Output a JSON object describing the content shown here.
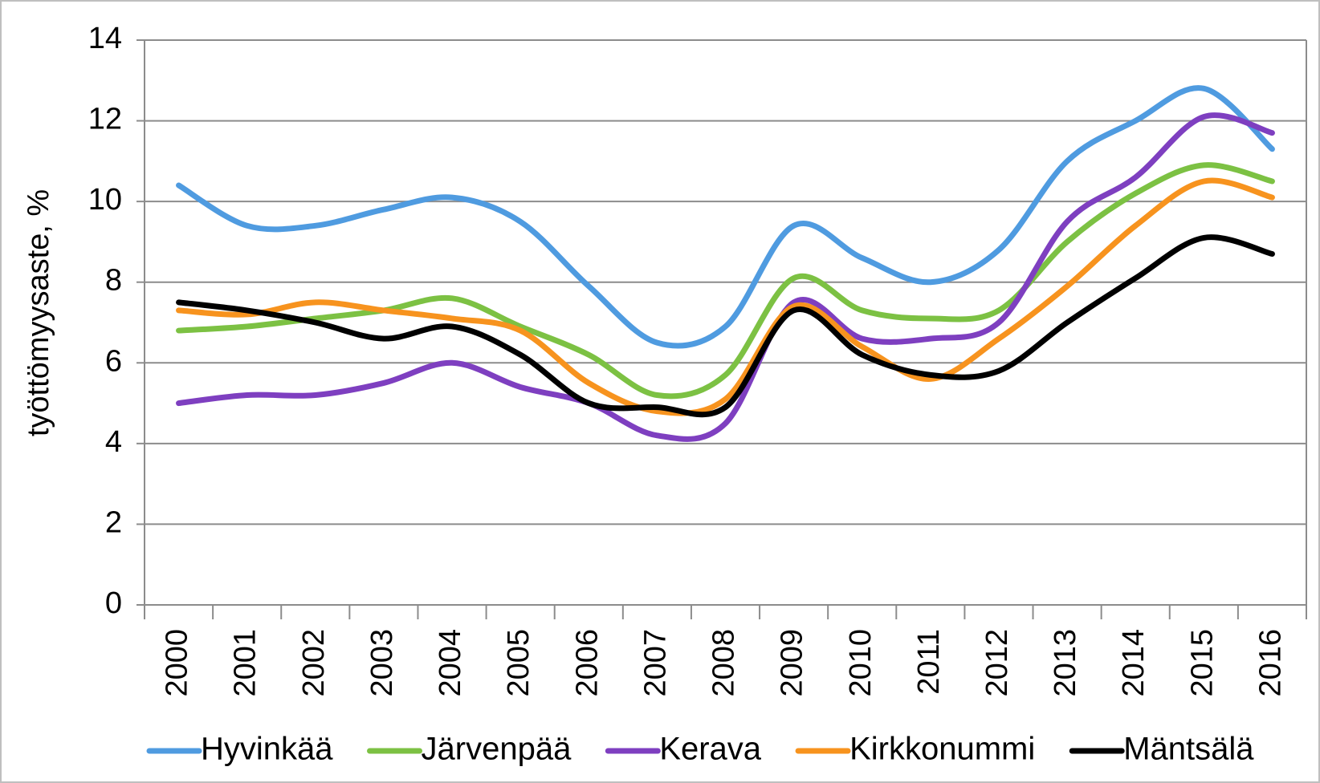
{
  "chart_data": {
    "type": "line",
    "y_label": "työttömyysaste, %",
    "categories": [
      "2000",
      "2001",
      "2002",
      "2003",
      "2004",
      "2005",
      "2006",
      "2007",
      "2008",
      "2009",
      "2010",
      "2011",
      "2012",
      "2013",
      "2014",
      "2015",
      "2016"
    ],
    "ylim": [
      0,
      14
    ],
    "yticks": [
      0,
      2,
      4,
      6,
      8,
      10,
      12,
      14
    ],
    "grid": true,
    "smooth": true,
    "legend": "bottom",
    "series": [
      {
        "name": "Hyvinkää",
        "color": "#4f9be0",
        "values": [
          10.4,
          9.4,
          9.4,
          9.8,
          10.1,
          9.5,
          7.9,
          6.5,
          6.9,
          9.4,
          8.6,
          8.0,
          8.8,
          11.0,
          12.0,
          12.8,
          11.3
        ]
      },
      {
        "name": "Järvenpää",
        "color": "#7cc143",
        "values": [
          6.8,
          6.9,
          7.1,
          7.3,
          7.6,
          6.9,
          6.2,
          5.2,
          5.7,
          8.1,
          7.3,
          7.1,
          7.3,
          9.0,
          10.2,
          10.9,
          10.5
        ]
      },
      {
        "name": "Kerava",
        "color": "#7e3fc0",
        "values": [
          5.0,
          5.2,
          5.2,
          5.5,
          6.0,
          5.4,
          5.0,
          4.2,
          4.5,
          7.5,
          6.6,
          6.6,
          7.0,
          9.5,
          10.6,
          12.1,
          11.7
        ]
      },
      {
        "name": "Kirkkonummi",
        "color": "#f7931e",
        "values": [
          7.3,
          7.2,
          7.5,
          7.3,
          7.1,
          6.8,
          5.5,
          4.8,
          5.1,
          7.4,
          6.4,
          5.6,
          6.6,
          7.9,
          9.4,
          10.5,
          10.1
        ]
      },
      {
        "name": "Mäntsälä",
        "color": "#000000",
        "values": [
          7.5,
          7.3,
          7.0,
          6.6,
          6.9,
          6.2,
          5.0,
          4.9,
          4.9,
          7.3,
          6.2,
          5.7,
          5.8,
          7.0,
          8.1,
          9.1,
          8.7
        ]
      }
    ]
  }
}
